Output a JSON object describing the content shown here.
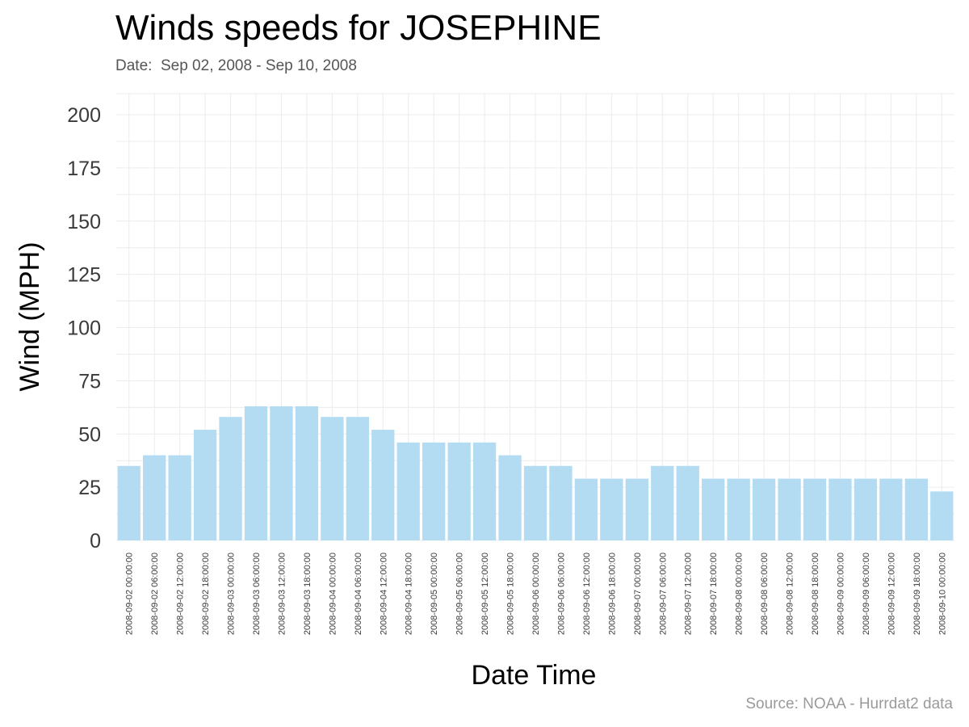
{
  "title": "Winds speeds for JOSEPHINE",
  "subtitle": "Date:  Sep 02, 2008 - Sep 10, 2008",
  "caption": "Source: NOAA - Hurrdat2 data",
  "colors": {
    "bar": "#b3dcf2",
    "grid": "#ececec",
    "background": "#ffffff"
  },
  "chart_data": {
    "type": "bar",
    "title": "Winds speeds for JOSEPHINE",
    "subtitle": "Date:  Sep 02, 2008 - Sep 10, 2008",
    "xlabel": "Date Time",
    "ylabel": "Wind (MPH)",
    "ylim": [
      0,
      200
    ],
    "yticks": [
      0,
      25,
      50,
      75,
      100,
      125,
      150,
      175,
      200
    ],
    "grid": true,
    "categories": [
      "2008-09-02 00:00:00",
      "2008-09-02 06:00:00",
      "2008-09-02 12:00:00",
      "2008-09-02 18:00:00",
      "2008-09-03 00:00:00",
      "2008-09-03 06:00:00",
      "2008-09-03 12:00:00",
      "2008-09-03 18:00:00",
      "2008-09-04 00:00:00",
      "2008-09-04 06:00:00",
      "2008-09-04 12:00:00",
      "2008-09-04 18:00:00",
      "2008-09-05 00:00:00",
      "2008-09-05 06:00:00",
      "2008-09-05 12:00:00",
      "2008-09-05 18:00:00",
      "2008-09-06 00:00:00",
      "2008-09-06 06:00:00",
      "2008-09-06 12:00:00",
      "2008-09-06 18:00:00",
      "2008-09-07 00:00:00",
      "2008-09-07 06:00:00",
      "2008-09-07 12:00:00",
      "2008-09-07 18:00:00",
      "2008-09-08 00:00:00",
      "2008-09-08 06:00:00",
      "2008-09-08 12:00:00",
      "2008-09-08 18:00:00",
      "2008-09-09 00:00:00",
      "2008-09-09 06:00:00",
      "2008-09-09 12:00:00",
      "2008-09-09 18:00:00",
      "2008-09-10 00:00:00"
    ],
    "values": [
      35,
      40,
      40,
      52,
      58,
      63,
      63,
      63,
      58,
      58,
      52,
      46,
      46,
      46,
      46,
      40,
      35,
      35,
      29,
      29,
      29,
      35,
      35,
      29,
      29,
      29,
      29,
      29,
      29,
      29,
      29,
      29,
      23
    ]
  }
}
